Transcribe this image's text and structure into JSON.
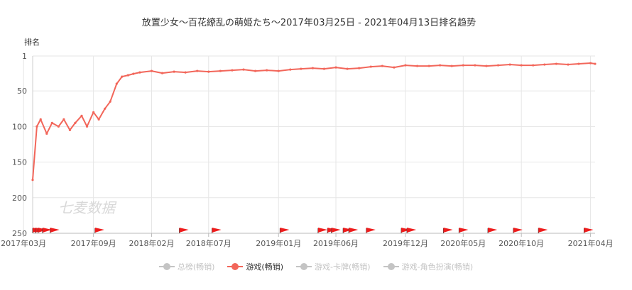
{
  "chart_data": {
    "type": "line",
    "title": "放置少女〜百花繚乱の萌姫たち〜2017年03月25日 - 2021年04月13日排名趋势",
    "ylabel": "排名",
    "watermark": "七麦数据",
    "y_reversed": true,
    "ylim": [
      1,
      250
    ],
    "yticks": [
      "1",
      "50",
      "100",
      "150",
      "200",
      "250"
    ],
    "xlim": [
      "2017-03-25",
      "2021-04-13"
    ],
    "xticks": [
      "2017年03月",
      "2017年09月",
      "2018年02月",
      "2018年07月",
      "2019年01月",
      "2019年06月",
      "2019年12月",
      "2020年05月",
      "2020年10月",
      "2021年04月"
    ],
    "xtick_dates": [
      "2017-03-01",
      "2017-09-01",
      "2018-02-01",
      "2018-07-01",
      "2019-01-01",
      "2019-06-01",
      "2019-12-01",
      "2020-05-01",
      "2020-10-01",
      "2021-04-01"
    ],
    "grid": true,
    "line_color": "#f2665a",
    "flag_color": "#ee1c1c",
    "series": [
      {
        "name": "游戏(畅销)",
        "x": [
          "2017-03-25",
          "2017-04-05",
          "2017-04-15",
          "2017-05-01",
          "2017-05-15",
          "2017-06-01",
          "2017-06-15",
          "2017-07-01",
          "2017-07-15",
          "2017-08-01",
          "2017-08-15",
          "2017-09-01",
          "2017-09-15",
          "2017-10-01",
          "2017-10-15",
          "2017-11-01",
          "2017-11-15",
          "2017-12-01",
          "2017-12-15",
          "2018-01-01",
          "2018-02-01",
          "2018-03-01",
          "2018-04-01",
          "2018-05-01",
          "2018-06-01",
          "2018-07-01",
          "2018-08-01",
          "2018-09-01",
          "2018-10-01",
          "2018-11-01",
          "2018-12-01",
          "2019-01-01",
          "2019-02-01",
          "2019-03-01",
          "2019-04-01",
          "2019-05-01",
          "2019-06-01",
          "2019-07-01",
          "2019-08-01",
          "2019-09-01",
          "2019-10-01",
          "2019-11-01",
          "2019-12-01",
          "2020-01-01",
          "2020-02-01",
          "2020-03-01",
          "2020-04-01",
          "2020-05-01",
          "2020-06-01",
          "2020-07-01",
          "2020-08-01",
          "2020-09-01",
          "2020-10-01",
          "2020-11-01",
          "2020-12-01",
          "2021-01-01",
          "2021-02-01",
          "2021-03-01",
          "2021-04-01",
          "2021-04-13"
        ],
        "values": [
          175,
          100,
          90,
          110,
          95,
          100,
          90,
          105,
          95,
          85,
          100,
          80,
          90,
          75,
          65,
          40,
          30,
          28,
          26,
          24,
          22,
          25,
          23,
          24,
          22,
          23,
          22,
          21,
          20,
          22,
          21,
          22,
          20,
          19,
          18,
          19,
          17,
          19,
          18,
          16,
          15,
          17,
          14,
          15,
          15,
          14,
          15,
          14,
          14,
          15,
          14,
          13,
          14,
          14,
          13,
          12,
          13,
          12,
          11,
          12
        ]
      }
    ],
    "flags_x": [
      "2017-03-25",
      "2017-04-01",
      "2017-04-08",
      "2017-04-20",
      "2017-05-10",
      "2017-09-05",
      "2018-04-15",
      "2018-07-10",
      "2019-01-05",
      "2019-04-15",
      "2019-05-10",
      "2019-05-20",
      "2019-06-20",
      "2019-07-05",
      "2019-08-20",
      "2019-11-20",
      "2019-12-05",
      "2020-03-10",
      "2020-04-20",
      "2020-07-05",
      "2020-09-10",
      "2020-11-15",
      "2021-03-15"
    ],
    "legend_position": "bottom-center",
    "legend": [
      {
        "label": "总榜(畅销)",
        "active": false,
        "color": "#c4c4c4"
      },
      {
        "label": "游戏(畅销)",
        "active": true,
        "color": "#f2665a"
      },
      {
        "label": "游戏-卡牌(畅销)",
        "active": false,
        "color": "#c4c4c4"
      },
      {
        "label": "游戏-角色扮演(畅销)",
        "active": false,
        "color": "#c4c4c4"
      }
    ]
  }
}
